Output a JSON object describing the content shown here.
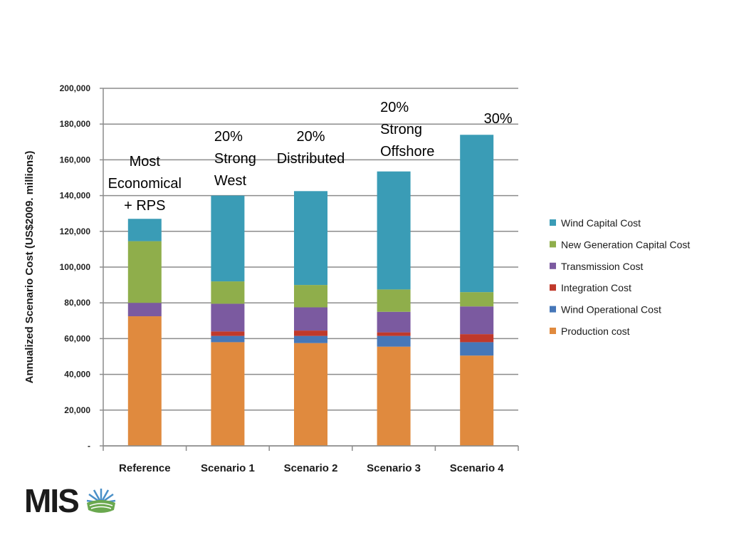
{
  "chart_data": {
    "type": "bar",
    "stacked": true,
    "categories": [
      "Reference",
      "Scenario 1",
      "Scenario 2",
      "Scenario 3",
      "Scenario 4"
    ],
    "ylabel": "Annualized Scenario Cost (US$2009. millions)",
    "ylim": [
      0,
      200000
    ],
    "yticks": [
      "-",
      "20,000",
      "40,000",
      "60,000",
      "80,000",
      "100,000",
      "120,000",
      "140,000",
      "160,000",
      "180,000",
      "200,000"
    ],
    "grid": true,
    "legend_position": "right",
    "series": [
      {
        "name": "Production cost",
        "color": "#E08A3E",
        "values": [
          72500,
          58000,
          57500,
          55500,
          50500
        ]
      },
      {
        "name": "Wind Operational Cost",
        "color": "#4677B8",
        "values": [
          0,
          3500,
          4000,
          6000,
          7500
        ]
      },
      {
        "name": "Integration Cost",
        "color": "#C0392B",
        "values": [
          0,
          2500,
          3000,
          2000,
          4500
        ]
      },
      {
        "name": "Transmission Cost",
        "color": "#7B5AA0",
        "values": [
          7500,
          15500,
          13000,
          11500,
          15500
        ]
      },
      {
        "name": "New Generation Capital Cost",
        "color": "#8FAE4B",
        "values": [
          34500,
          12500,
          12500,
          12500,
          8000
        ]
      },
      {
        "name": "Wind Capital Cost",
        "color": "#3A9CB6",
        "values": [
          12500,
          48000,
          52500,
          66000,
          88000
        ]
      }
    ],
    "annotations": [
      {
        "category": "Reference",
        "lines": [
          "Most",
          "Economical",
          "+ RPS"
        ]
      },
      {
        "category": "Scenario 1",
        "lines": [
          "20%",
          "Strong",
          "West"
        ]
      },
      {
        "category": "Scenario 2",
        "lines": [
          "20%",
          "Distributed"
        ]
      },
      {
        "category": "Scenario 3",
        "lines": [
          "20%",
          "Strong",
          "Offshore"
        ]
      },
      {
        "category": "Scenario 4",
        "lines": [
          "30%"
        ]
      }
    ]
  },
  "logo": {
    "text": "MIS"
  }
}
